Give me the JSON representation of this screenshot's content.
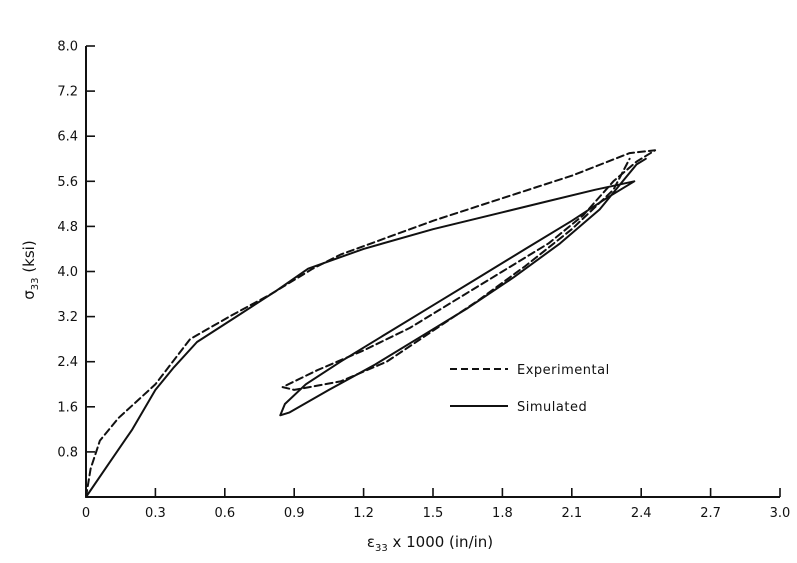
{
  "chart_data": {
    "type": "line",
    "xlabel": {
      "main": "ε",
      "sub": "33",
      "rest": " x 1000 (in/in)"
    },
    "ylabel": {
      "main": "σ",
      "sub": "33",
      "rest": " (ksi)"
    },
    "xlim": [
      0,
      3.0
    ],
    "ylim": [
      0,
      8.0
    ],
    "x_ticks": [
      "0",
      "0.3",
      "0.6",
      "0.9",
      "1.2",
      "1.5",
      "1.8",
      "2.1",
      "2.4",
      "2.7",
      "3.0"
    ],
    "y_ticks": [
      "0.8",
      "1.6",
      "2.4",
      "3.2",
      "4.0",
      "4.8",
      "5.6",
      "6.4",
      "7.2",
      "8.0"
    ],
    "grid": false,
    "legend_position": "center-right",
    "series": [
      {
        "name": "Experimental",
        "style": "dashed",
        "color": "#111111",
        "points": [
          [
            0.0,
            0.0
          ],
          [
            0.02,
            0.5
          ],
          [
            0.06,
            1.0
          ],
          [
            0.14,
            1.4
          ],
          [
            0.3,
            2.0
          ],
          [
            0.45,
            2.8
          ],
          [
            0.62,
            3.2
          ],
          [
            0.8,
            3.6
          ],
          [
            0.98,
            4.05
          ],
          [
            1.1,
            4.3
          ],
          [
            1.3,
            4.6
          ],
          [
            1.5,
            4.9
          ],
          [
            1.8,
            5.3
          ],
          [
            2.1,
            5.7
          ],
          [
            2.35,
            6.1
          ],
          [
            2.46,
            6.15
          ],
          [
            2.38,
            5.95
          ],
          [
            2.28,
            5.6
          ],
          [
            2.15,
            5.0
          ],
          [
            2.0,
            4.5
          ],
          [
            1.8,
            4.0
          ],
          [
            1.6,
            3.5
          ],
          [
            1.4,
            3.0
          ],
          [
            1.2,
            2.6
          ],
          [
            1.0,
            2.25
          ],
          [
            0.85,
            1.95
          ],
          [
            0.9,
            1.9
          ],
          [
            1.1,
            2.05
          ],
          [
            1.3,
            2.4
          ],
          [
            1.5,
            2.95
          ],
          [
            1.7,
            3.5
          ],
          [
            1.9,
            4.1
          ],
          [
            2.1,
            4.75
          ],
          [
            2.28,
            5.45
          ],
          [
            2.35,
            6.0
          ]
        ]
      },
      {
        "name": "Simulated",
        "style": "solid",
        "color": "#111111",
        "points": [
          [
            0.0,
            0.0
          ],
          [
            0.1,
            0.6
          ],
          [
            0.2,
            1.2
          ],
          [
            0.3,
            1.9
          ],
          [
            0.38,
            2.3
          ],
          [
            0.48,
            2.75
          ],
          [
            0.65,
            3.2
          ],
          [
            0.82,
            3.65
          ],
          [
            0.96,
            4.05
          ],
          [
            1.2,
            4.4
          ],
          [
            1.5,
            4.75
          ],
          [
            1.8,
            5.05
          ],
          [
            2.0,
            5.25
          ],
          [
            2.2,
            5.45
          ],
          [
            2.37,
            5.6
          ],
          [
            2.25,
            5.3
          ],
          [
            2.1,
            4.9
          ],
          [
            1.9,
            4.4
          ],
          [
            1.7,
            3.9
          ],
          [
            1.5,
            3.4
          ],
          [
            1.3,
            2.9
          ],
          [
            1.1,
            2.4
          ],
          [
            0.95,
            2.0
          ],
          [
            0.86,
            1.65
          ],
          [
            0.84,
            1.45
          ],
          [
            0.88,
            1.5
          ],
          [
            1.05,
            1.9
          ],
          [
            1.25,
            2.35
          ],
          [
            1.45,
            2.85
          ],
          [
            1.65,
            3.35
          ],
          [
            1.85,
            3.9
          ],
          [
            2.05,
            4.5
          ],
          [
            2.22,
            5.1
          ],
          [
            2.32,
            5.6
          ],
          [
            2.38,
            5.9
          ],
          [
            2.42,
            6.0
          ]
        ]
      }
    ]
  }
}
